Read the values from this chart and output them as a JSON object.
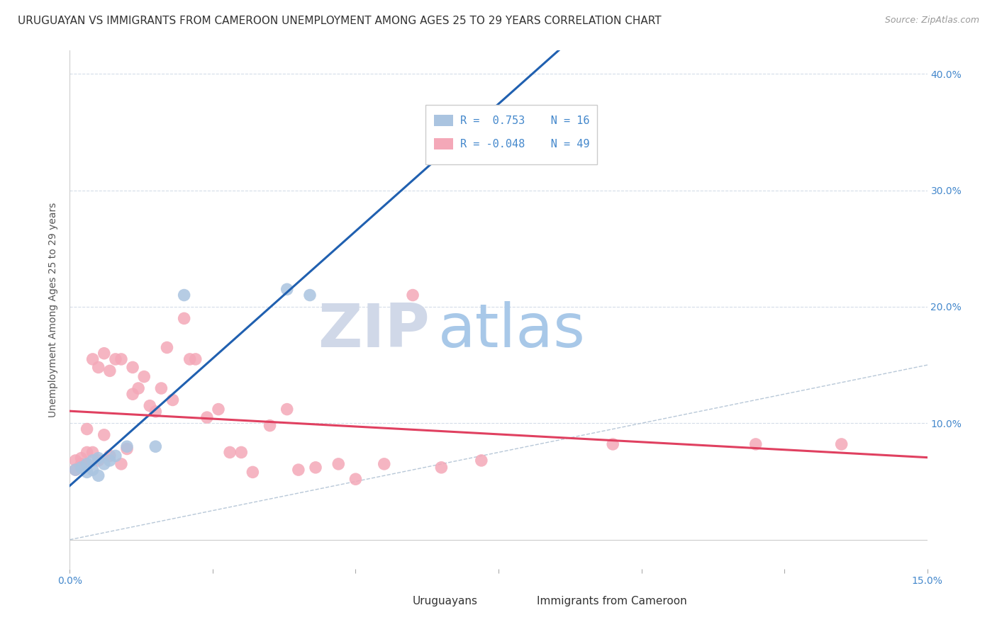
{
  "title": "URUGUAYAN VS IMMIGRANTS FROM CAMEROON UNEMPLOYMENT AMONG AGES 25 TO 29 YEARS CORRELATION CHART",
  "source": "Source: ZipAtlas.com",
  "ylabel": "Unemployment Among Ages 25 to 29 years",
  "xlim": [
    0.0,
    0.15
  ],
  "ylim": [
    -0.025,
    0.42
  ],
  "uruguayan_R": 0.753,
  "uruguayan_N": 16,
  "cameroon_R": -0.048,
  "cameroon_N": 49,
  "blue_color": "#aac4e0",
  "pink_color": "#f4a8b8",
  "blue_line_color": "#2060b0",
  "pink_line_color": "#e04060",
  "legend_text_color": "#4488cc",
  "grid_color": "#d4dce8",
  "watermark_color": "#ccdcf0",
  "uruguayan_x": [
    0.001,
    0.002,
    0.003,
    0.003,
    0.004,
    0.004,
    0.005,
    0.005,
    0.006,
    0.007,
    0.008,
    0.01,
    0.015,
    0.02,
    0.038,
    0.042
  ],
  "uruguayan_y": [
    0.06,
    0.062,
    0.058,
    0.065,
    0.06,
    0.068,
    0.055,
    0.07,
    0.065,
    0.068,
    0.072,
    0.08,
    0.08,
    0.21,
    0.215,
    0.21
  ],
  "cameroon_x": [
    0.001,
    0.001,
    0.002,
    0.002,
    0.003,
    0.003,
    0.003,
    0.004,
    0.004,
    0.005,
    0.005,
    0.006,
    0.006,
    0.007,
    0.007,
    0.008,
    0.009,
    0.009,
    0.01,
    0.011,
    0.011,
    0.012,
    0.013,
    0.014,
    0.015,
    0.016,
    0.017,
    0.018,
    0.02,
    0.021,
    0.022,
    0.024,
    0.026,
    0.028,
    0.03,
    0.032,
    0.035,
    0.038,
    0.04,
    0.043,
    0.047,
    0.05,
    0.055,
    0.06,
    0.065,
    0.072,
    0.095,
    0.12,
    0.135
  ],
  "cameroon_y": [
    0.06,
    0.068,
    0.065,
    0.07,
    0.065,
    0.075,
    0.095,
    0.075,
    0.155,
    0.068,
    0.148,
    0.09,
    0.16,
    0.072,
    0.145,
    0.155,
    0.065,
    0.155,
    0.078,
    0.148,
    0.125,
    0.13,
    0.14,
    0.115,
    0.11,
    0.13,
    0.165,
    0.12,
    0.19,
    0.155,
    0.155,
    0.105,
    0.112,
    0.075,
    0.075,
    0.058,
    0.098,
    0.112,
    0.06,
    0.062,
    0.065,
    0.052,
    0.065,
    0.21,
    0.062,
    0.068,
    0.082,
    0.082,
    0.082
  ],
  "title_fontsize": 11,
  "axis_label_fontsize": 10,
  "tick_fontsize": 10,
  "source_fontsize": 9
}
